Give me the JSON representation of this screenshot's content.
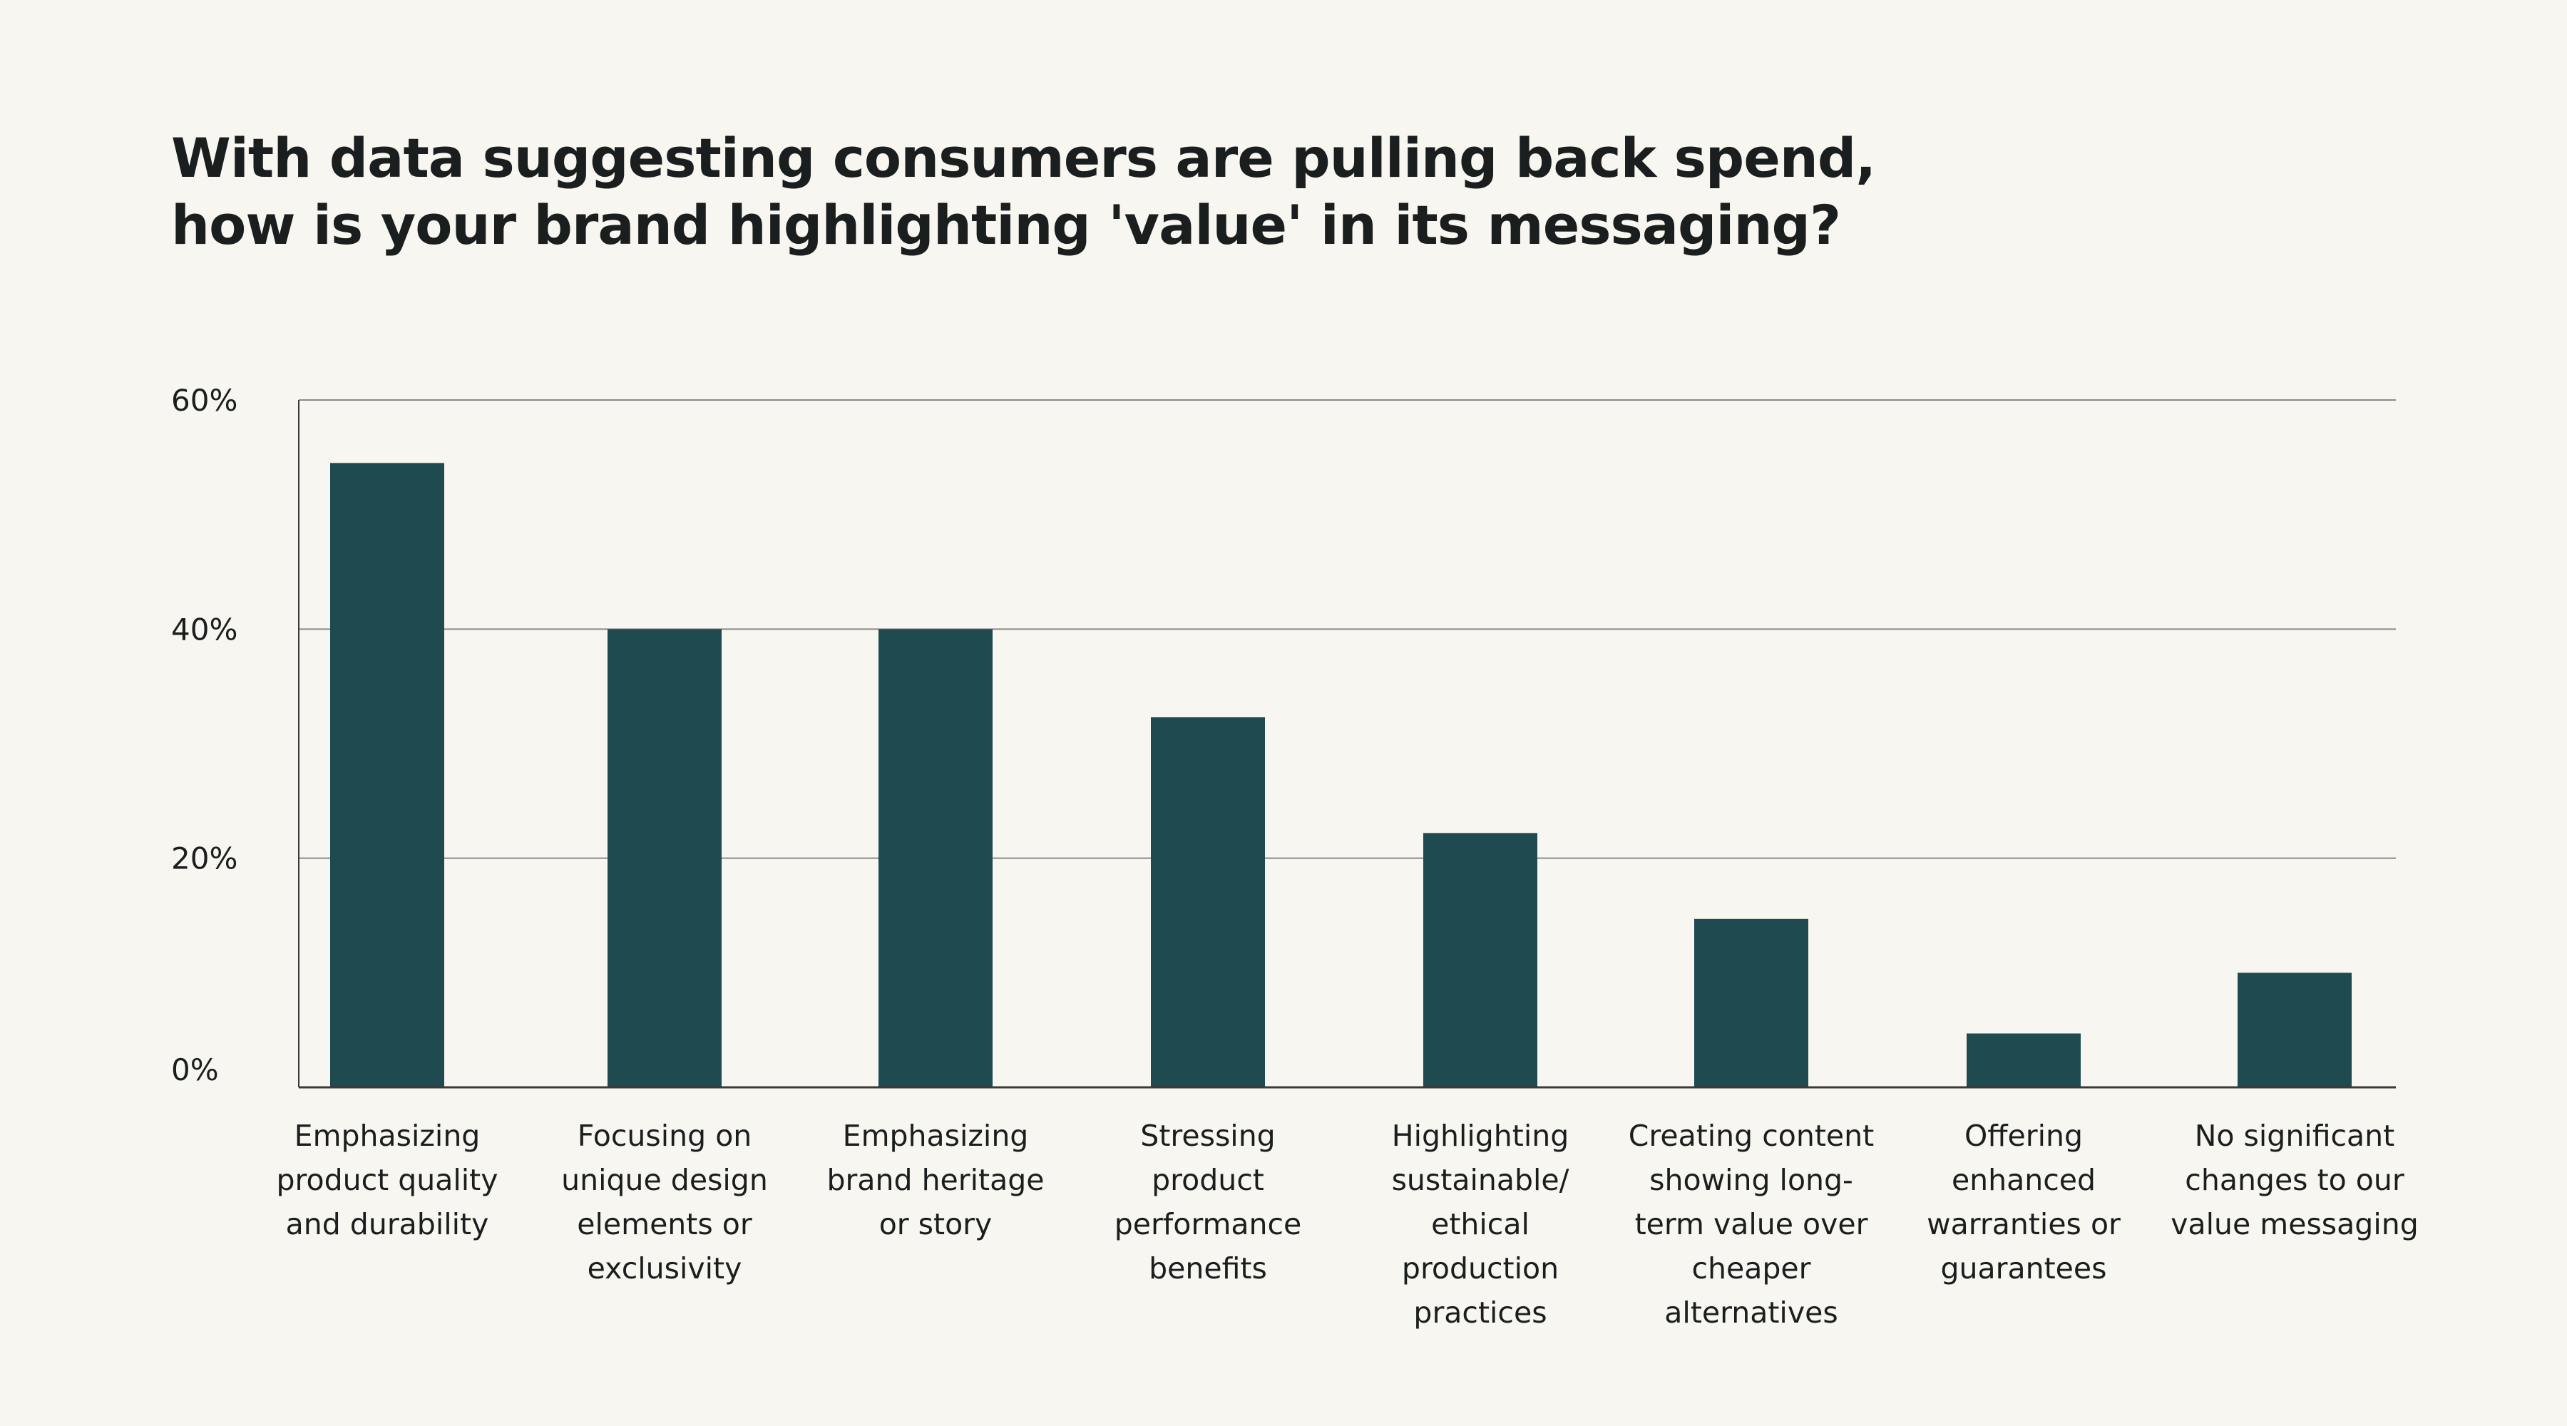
{
  "title_lines": [
    "With data suggesting consumers are pulling back spend,",
    "how is your brand highlighting 'value' in its messaging?"
  ],
  "colors": {
    "background": "#f8f6f0",
    "bar": "#1f4a50",
    "gridline": "#8a8a8a",
    "axis": "#3a3a3a",
    "text": "#1b1e1e"
  },
  "chart_data": {
    "type": "bar",
    "categories": [
      "Emphasizing\nproduct quality\nand durability",
      "Focusing on\nunique design\nelements or\nexclusivity",
      "Emphasizing\nbrand heritage\nor story",
      "Stressing\nproduct\nperformance\nbenefits",
      "Highlighting\nsustainable/\nethical\nproduction\npractices",
      "Creating content\nshowing long-\nterm value over\ncheaper\nalternatives",
      "Offering\nenhanced\nwarranties or\nguarantees",
      "No significant\nchanges to our\nvalue messaging"
    ],
    "values": [
      54.5,
      40,
      40,
      32.3,
      22.2,
      14.7,
      4.7,
      10
    ],
    "ylim": [
      0,
      60
    ],
    "yticks": [
      0,
      20,
      40,
      60
    ],
    "ytick_labels": [
      "0%",
      "20%",
      "40%",
      "60%"
    ],
    "grid": true,
    "xlabel": "",
    "ylabel": ""
  }
}
